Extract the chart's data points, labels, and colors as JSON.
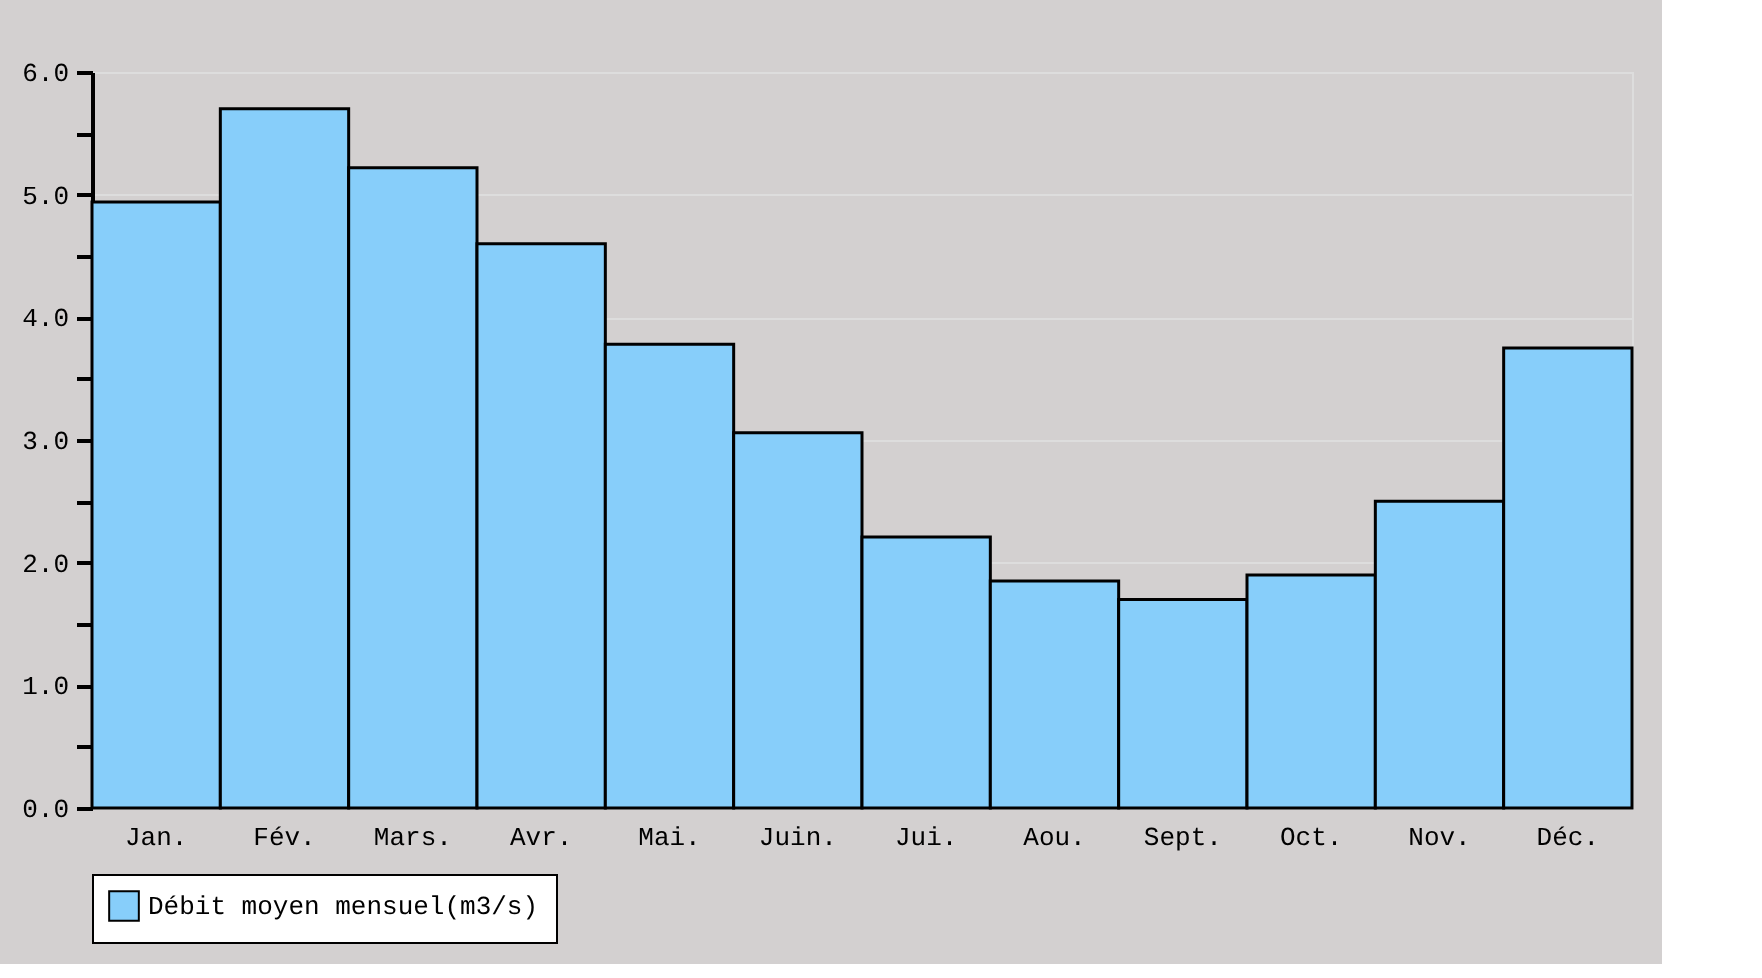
{
  "chart_data": {
    "type": "bar",
    "categories": [
      "Jan.",
      "Fév.",
      "Mars.",
      "Avr.",
      "Mai.",
      "Juin.",
      "Jui.",
      "Aou.",
      "Sept.",
      "Oct.",
      "Nov.",
      "Déc."
    ],
    "series": [
      {
        "name": "Débit moyen mensuel(m3/s)",
        "color": "#87cefa",
        "values": [
          4.94,
          5.7,
          5.22,
          4.6,
          3.78,
          3.06,
          2.21,
          1.85,
          1.7,
          1.9,
          2.5,
          3.75
        ]
      }
    ],
    "ylim": [
      0,
      6
    ],
    "yticks": [
      {
        "value": 0,
        "label": "0.0"
      },
      {
        "value": 0.5,
        "label": null
      },
      {
        "value": 1,
        "label": "1.0"
      },
      {
        "value": 1.5,
        "label": null
      },
      {
        "value": 2,
        "label": "2.0"
      },
      {
        "value": 2.5,
        "label": null
      },
      {
        "value": 3,
        "label": "3.0"
      },
      {
        "value": 3.5,
        "label": null
      },
      {
        "value": 4,
        "label": "4.0"
      },
      {
        "value": 4.5,
        "label": null
      },
      {
        "value": 5,
        "label": "5.0"
      },
      {
        "value": 5.5,
        "label": null
      },
      {
        "value": 6,
        "label": "6.0"
      }
    ],
    "grid": "y",
    "legend": "bottom"
  }
}
